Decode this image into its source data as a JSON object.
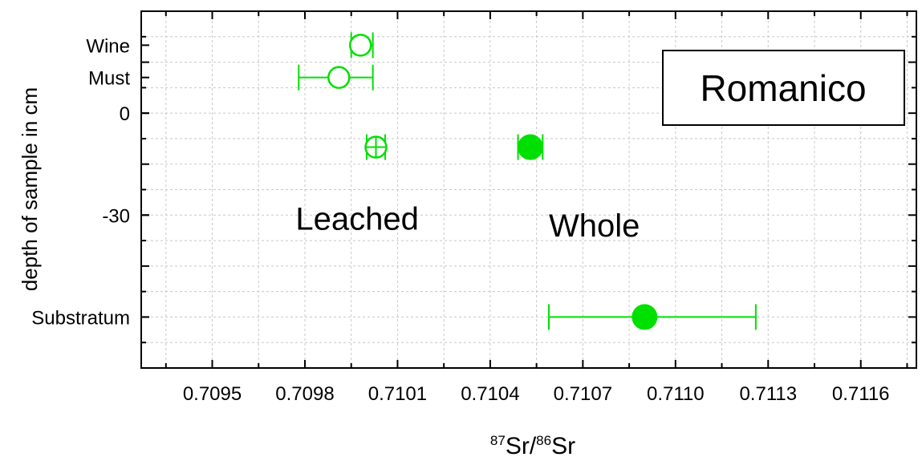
{
  "chart_data": {
    "type": "scatter",
    "title": "Romanico",
    "xlabel": {
      "sup1": "87",
      "t1": "Sr/",
      "sup2": "86",
      "t2": "Sr"
    },
    "ylabel": "depth of sample in cm",
    "xlim": [
      0.70927,
      0.71178
    ],
    "ylim": [
      -75,
      30
    ],
    "x_ticks": [
      {
        "value": 0.7095,
        "label": "0.7095"
      },
      {
        "value": 0.7098,
        "label": "0.7098"
      },
      {
        "value": 0.7101,
        "label": "0.7101"
      },
      {
        "value": 0.7104,
        "label": "0.7104"
      },
      {
        "value": 0.7107,
        "label": "0.7107"
      },
      {
        "value": 0.711,
        "label": "0.7110"
      },
      {
        "value": 0.7113,
        "label": "0.7113"
      },
      {
        "value": 0.7116,
        "label": "0.7116"
      }
    ],
    "y_ticks": [
      {
        "value": 20,
        "label": "Wine"
      },
      {
        "value": 10.5,
        "label": "Must"
      },
      {
        "value": 0,
        "label": "0"
      },
      {
        "value": -30,
        "label": "-30"
      },
      {
        "value": -60,
        "label": "Substratum"
      }
    ],
    "points": [
      {
        "name": "Wine",
        "x": 0.70998,
        "y": 20,
        "xerr": [
          0.70995,
          0.71002
        ],
        "marker": "open-circle"
      },
      {
        "name": "Must",
        "x": 0.70991,
        "y": 10.5,
        "xerr": [
          0.70978,
          0.71002
        ],
        "marker": "open-circle"
      },
      {
        "name": "Leached",
        "x": 0.71003,
        "y": -10,
        "xerr": [
          0.71,
          0.71006
        ],
        "marker": "crossed-circle"
      },
      {
        "name": "Whole",
        "x": 0.71053,
        "y": -10,
        "xerr": [
          0.71049,
          0.71057
        ],
        "marker": "filled-circle"
      },
      {
        "name": "Substratum",
        "x": 0.7109,
        "y": -60,
        "xerr": [
          0.71059,
          0.71126
        ],
        "marker": "filled-circle"
      }
    ],
    "annotations": [
      {
        "text": "Leached",
        "x": 0.70977,
        "y": -31
      },
      {
        "text": "Whole",
        "x": 0.71059,
        "y": -33
      }
    ],
    "grid": true,
    "colors": {
      "series": "#00e000",
      "axis": "#000000",
      "grid": "#c8c8c8"
    }
  }
}
